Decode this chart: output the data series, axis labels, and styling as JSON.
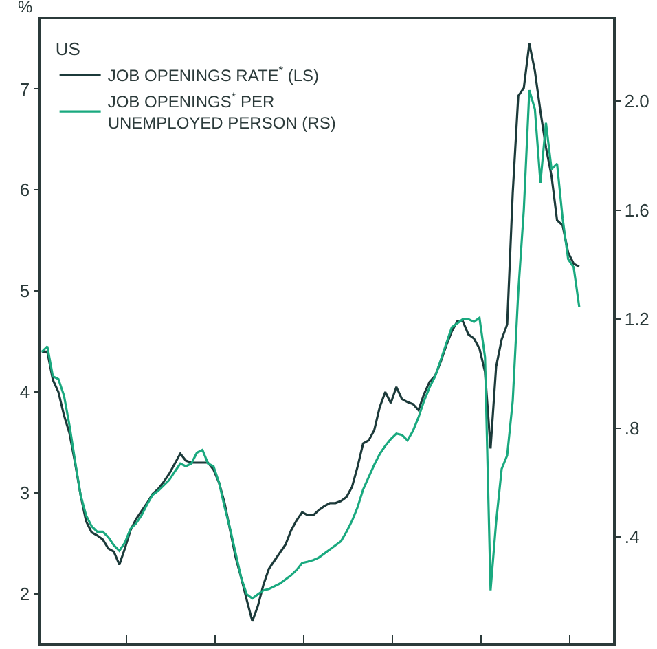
{
  "chart_data": {
    "type": "line",
    "ylabel": "%",
    "legend_title": "US",
    "legend": "top left",
    "tick_labels": "y",
    "categories": [
      null,
      null,
      null,
      null,
      null,
      null,
      null,
      null,
      null,
      null,
      null,
      null,
      null,
      null,
      null,
      null,
      null,
      null,
      null,
      null,
      null,
      null,
      null,
      null,
      null,
      null,
      null,
      null,
      null,
      null,
      null,
      null,
      null,
      null,
      null,
      null,
      null,
      null,
      null,
      null,
      null,
      null,
      null,
      null,
      null,
      null,
      null,
      null,
      null,
      null,
      null,
      null,
      null,
      null,
      null,
      null,
      null,
      null,
      null,
      null,
      null,
      null,
      null,
      null,
      null,
      null,
      null,
      null,
      null,
      null,
      null,
      null,
      null,
      null,
      null,
      null,
      null,
      null,
      null,
      null,
      null,
      null,
      null,
      null,
      null,
      null,
      null,
      null,
      null,
      null,
      null,
      null,
      null,
      null,
      null,
      null,
      null,
      null
    ],
    "ylim": [
      1.51,
      7.69
    ],
    "yticks": [
      2,
      3,
      4,
      5,
      6,
      7
    ],
    "y2lim": [
      0.01,
      2.3
    ],
    "y2ticks": [
      {
        "value": 0.4,
        "label": ".4"
      },
      {
        "value": 0.8,
        "label": ".8"
      },
      {
        "value": 1.2,
        "label": "1.2"
      },
      {
        "value": 1.6,
        "label": "1.6"
      },
      {
        "value": 2.0,
        "label": "2.0"
      }
    ],
    "series": [
      {
        "name": "JOB OPENINGS RATE$^{*}$ (LS)",
        "color": "#1c3a3a",
        "values": [
          4.4,
          4.4,
          4.12,
          4.0,
          3.77,
          3.59,
          3.3,
          2.98,
          2.72,
          2.61,
          2.58,
          2.54,
          2.45,
          2.42,
          2.29,
          2.45,
          2.63,
          2.74,
          2.82,
          2.9,
          2.99,
          3.04,
          3.11,
          3.19,
          3.29,
          3.39,
          3.32,
          3.3,
          3.3,
          3.3,
          3.3,
          3.23,
          3.1,
          2.9,
          2.63,
          2.36,
          2.16,
          1.94,
          1.73,
          1.88,
          2.09,
          2.25,
          2.33,
          2.41,
          2.49,
          2.63,
          2.73,
          2.81,
          2.78,
          2.78,
          2.83,
          2.87,
          2.9,
          2.9,
          2.92,
          2.96,
          3.06,
          3.26,
          3.49,
          3.52,
          3.62,
          3.85,
          4.0,
          3.89,
          4.05,
          3.93,
          3.9,
          3.88,
          3.82,
          3.98,
          4.1,
          4.16,
          4.3,
          4.46,
          4.6,
          4.7,
          4.7,
          4.57,
          4.53,
          4.43,
          4.2,
          3.44,
          4.25,
          4.52,
          4.67,
          5.97,
          6.93,
          7.01,
          7.45,
          7.18,
          6.78,
          6.42,
          6.14,
          5.7,
          5.65,
          5.38,
          5.27,
          5.24
        ]
      },
      {
        "name": "JOB OPENINGS$^{*}$ PER UNEMPLOYED PERSON (RS)",
        "color": "#1aa97f",
        "axis": "y2",
        "values": [
          1.08,
          1.1,
          0.99,
          0.98,
          0.92,
          0.81,
          0.68,
          0.555,
          0.48,
          0.44,
          0.42,
          0.42,
          0.4,
          0.37,
          0.35,
          0.38,
          0.43,
          0.45,
          0.48,
          0.52,
          0.555,
          0.57,
          0.59,
          0.61,
          0.64,
          0.67,
          0.66,
          0.67,
          0.71,
          0.72,
          0.67,
          0.66,
          0.6,
          0.51,
          0.43,
          0.34,
          0.25,
          0.19,
          0.175,
          0.19,
          0.205,
          0.21,
          0.22,
          0.23,
          0.245,
          0.26,
          0.28,
          0.305,
          0.31,
          0.316,
          0.325,
          0.34,
          0.355,
          0.37,
          0.385,
          0.42,
          0.46,
          0.51,
          0.575,
          0.62,
          0.665,
          0.705,
          0.735,
          0.76,
          0.78,
          0.775,
          0.755,
          0.79,
          0.84,
          0.9,
          0.95,
          0.99,
          1.05,
          1.11,
          1.17,
          1.185,
          1.2,
          1.2,
          1.19,
          1.205,
          1.06,
          0.205,
          0.455,
          0.65,
          0.7,
          0.9,
          1.3,
          1.6,
          2.04,
          1.97,
          1.7,
          1.92,
          1.75,
          1.77,
          1.57,
          1.42,
          1.39,
          1.245
        ]
      }
    ]
  }
}
